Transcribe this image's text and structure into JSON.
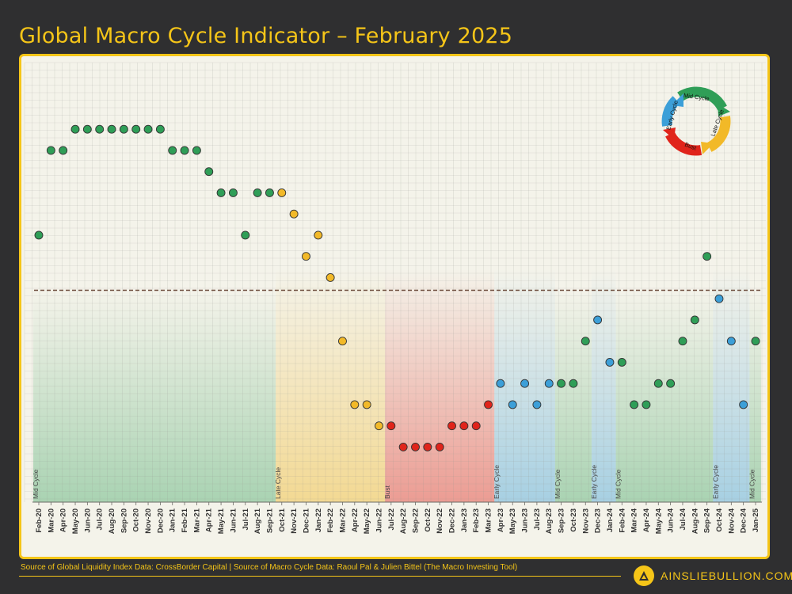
{
  "page": {
    "title": "Global Macro Cycle Indicator – February 2025",
    "source": "Source of Global Liquidity Index Data: CrossBorder Capital | Source of Macro Cycle Data: Raoul Pal & Julien Bittel (The Macro Investing Tool)",
    "brand": "AINSLIEBULLION.COM.AU"
  },
  "colors": {
    "background": "#2f2f30",
    "accent": "#f5c518",
    "mid_cycle": "#2f9e57",
    "late_cycle": "#f2b928",
    "bust": "#e0241b",
    "early_cycle": "#3c9fd8"
  },
  "legend": {
    "labels": [
      "Mid Cycle",
      "Late Cycle",
      "Bust",
      "Early Cycle"
    ]
  },
  "chart_data": {
    "type": "scatter",
    "title": "",
    "xlabel": "",
    "ylabel": "",
    "ylim": [
      -10,
      10
    ],
    "grid": true,
    "legend_position": "top-right",
    "threshold": 0,
    "categories": [
      "Feb-20",
      "Mar-20",
      "Apr-20",
      "May-20",
      "Jun-20",
      "Jul-20",
      "Aug-20",
      "Sep-20",
      "Oct-20",
      "Nov-20",
      "Dec-20",
      "Jan-21",
      "Feb-21",
      "Mar-21",
      "Apr-21",
      "May-21",
      "Jun-21",
      "Jul-21",
      "Aug-21",
      "Sep-21",
      "Oct-21",
      "Nov-21",
      "Dec-21",
      "Jan-22",
      "Feb-22",
      "Mar-22",
      "Apr-22",
      "May-22",
      "Jun-22",
      "Jul-22",
      "Aug-22",
      "Sep-22",
      "Oct-22",
      "Nov-22",
      "Dec-22",
      "Jan-23",
      "Feb-23",
      "Mar-23",
      "Apr-23",
      "May-23",
      "Jun-23",
      "Jul-23",
      "Aug-23",
      "Sep-23",
      "Oct-23",
      "Nov-23",
      "Dec-23",
      "Jan-24",
      "Feb-24",
      "Mar-24",
      "Apr-24",
      "May-24",
      "Jun-24",
      "Jul-24",
      "Aug-24",
      "Sep-24",
      "Oct-24",
      "Nov-24",
      "Dec-24",
      "Jan-25"
    ],
    "x_tick_labels": [
      "Feb-20",
      "Mar-20",
      "Apr-20",
      "May-20",
      "Jun-20",
      "Jul-20",
      "Aug-20",
      "Sep-20",
      "Oct-20",
      "Nov-20",
      "Dec-20",
      "Jan-21",
      "Feb-21",
      "Mar-21",
      "Apr-21",
      "May-21",
      "Jun-21",
      "Jul-21",
      "Aug-21",
      "Sep-21",
      "Oct-21",
      "Nov-21",
      "Dec-21",
      "Jan-22",
      "Feb-22",
      "Mar-22",
      "Apr-22",
      "May-22",
      "Jun-22",
      "Jul-22",
      "Aug-22",
      "Sep-22",
      "Oct-22",
      "Nov-22",
      "Dec-22",
      "Jan-23",
      "Feb-23",
      "Mar-23",
      "Apr-23",
      "May-23",
      "Jun-23",
      "Jul-23",
      "Aug-23",
      "Sep-23",
      "Oct-23",
      "Nov-23",
      "Dec-23",
      "Jan-24",
      "Feb-24",
      "Mar-24",
      "Apr-24",
      "May-24",
      "Jun-24",
      "Jul-24",
      "Aug-24",
      "Sep-24",
      "Oct-24",
      "Nov-24",
      "Dec-24",
      "Jan-25"
    ],
    "values": [
      2.6,
      6.6,
      6.6,
      7.6,
      7.6,
      7.6,
      7.6,
      7.6,
      7.6,
      7.6,
      7.6,
      6.6,
      6.6,
      6.6,
      5.6,
      4.6,
      4.6,
      2.6,
      4.6,
      4.6,
      4.6,
      3.6,
      1.6,
      2.6,
      0.6,
      -2.4,
      -5.4,
      -5.4,
      -6.4,
      -6.4,
      -7.4,
      -7.4,
      -7.4,
      -7.4,
      -6.4,
      -6.4,
      -6.4,
      -5.4,
      -4.4,
      -5.4,
      -4.4,
      -5.4,
      -4.4,
      -4.4,
      -4.4,
      -2.4,
      -1.4,
      -3.4,
      -3.4,
      -5.4,
      -5.4,
      -4.4,
      -4.4,
      -2.4,
      -1.4,
      1.6,
      -0.4,
      -2.4,
      -5.4,
      -2.4
    ],
    "phases": [
      "mid",
      "mid",
      "mid",
      "mid",
      "mid",
      "mid",
      "mid",
      "mid",
      "mid",
      "mid",
      "mid",
      "mid",
      "mid",
      "mid",
      "mid",
      "mid",
      "mid",
      "mid",
      "mid",
      "mid",
      "late",
      "late",
      "late",
      "late",
      "late",
      "late",
      "late",
      "late",
      "late",
      "bust",
      "bust",
      "bust",
      "bust",
      "bust",
      "bust",
      "bust",
      "bust",
      "bust",
      "early",
      "early",
      "early",
      "early",
      "early",
      "mid",
      "mid",
      "mid",
      "early",
      "early",
      "mid",
      "mid",
      "mid",
      "mid",
      "mid",
      "mid",
      "mid",
      "mid",
      "early",
      "early",
      "early",
      "mid"
    ],
    "bands": [
      {
        "phase": "mid",
        "label": "Mid Cycle",
        "start": 0,
        "end": 19
      },
      {
        "phase": "late",
        "label": "Late Cycle",
        "start": 20,
        "end": 28
      },
      {
        "phase": "bust",
        "label": "Bust",
        "start": 29,
        "end": 37
      },
      {
        "phase": "early",
        "label": "Early Cycle",
        "start": 38,
        "end": 42
      },
      {
        "phase": "mid",
        "label": "Mid Cycle",
        "start": 43,
        "end": 45
      },
      {
        "phase": "early",
        "label": "Early Cycle",
        "start": 46,
        "end": 47
      },
      {
        "phase": "mid",
        "label": "Mid Cycle",
        "start": 48,
        "end": 55
      },
      {
        "phase": "early",
        "label": "Early Cycle",
        "start": 56,
        "end": 58
      },
      {
        "phase": "mid",
        "label": "Mid Cycle",
        "start": 59,
        "end": 59
      }
    ]
  }
}
